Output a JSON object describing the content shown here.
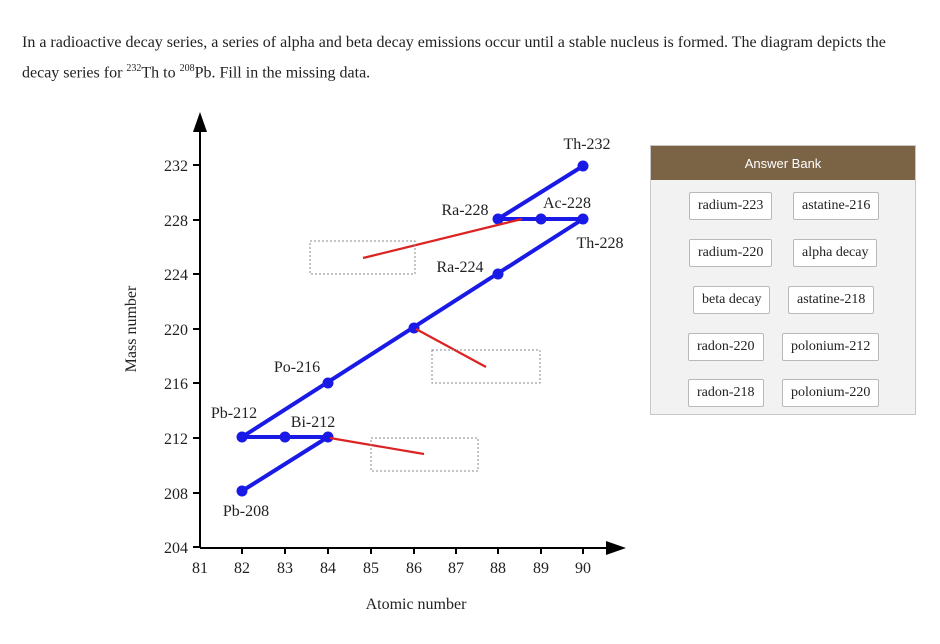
{
  "question": {
    "part1": "In a radioactive decay series, a series of alpha and beta decay emissions occur until a stable nucleus is formed. The diagram depicts the decay series for ",
    "sup1": "232",
    "part2": "Th to ",
    "sup2": "208",
    "part3": "Pb. Fill in the missing data."
  },
  "diagram": {
    "xlabel": "Atomic number",
    "ylabel": "Mass number",
    "x_ticks": [
      "81",
      "82",
      "83",
      "84",
      "85",
      "86",
      "87",
      "88",
      "89",
      "90"
    ],
    "y_ticks": [
      "204",
      "208",
      "212",
      "216",
      "220",
      "224",
      "228",
      "232"
    ],
    "nuclide_labels": {
      "th232": "Th-232",
      "ac228": "Ac-228",
      "ra228": "Ra-228",
      "th228": "Th-228",
      "ra224": "Ra-224",
      "po216": "Po-216",
      "pb212": "Pb-212",
      "bi212": "Bi-212",
      "pb208": "Pb-208"
    },
    "colors": {
      "path": "#1a1ae6",
      "pointer": "#dd2222",
      "axis": "#000000"
    }
  },
  "answer_bank": {
    "title": "Answer Bank",
    "items": [
      "radium-223",
      "astatine-216",
      "radium-220",
      "alpha decay",
      "beta decay",
      "astatine-218",
      "radon-220",
      "polonium-212",
      "radon-218",
      "polonium-220"
    ]
  }
}
